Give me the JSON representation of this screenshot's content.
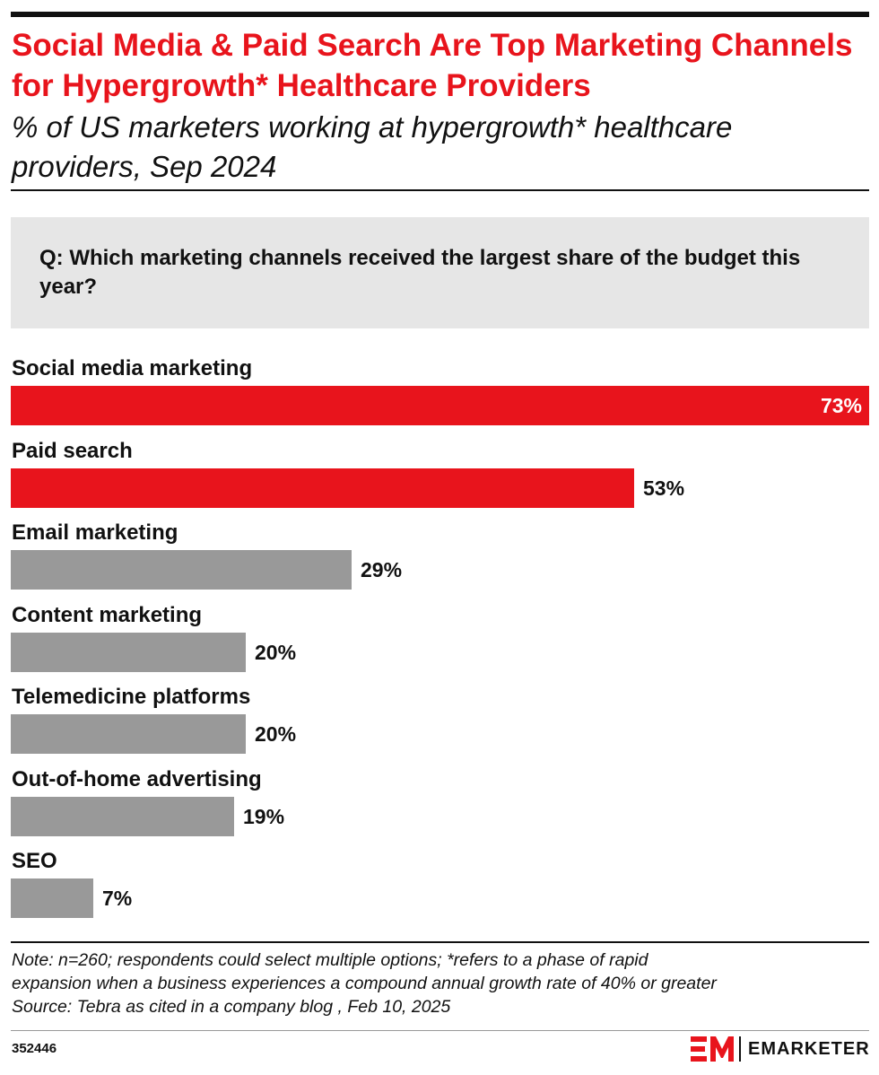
{
  "header": {
    "title": "Social Media & Paid Search Are Top Marketing Channels for Hypergrowth* Healthcare Providers",
    "subtitle": "% of US marketers working at hypergrowth* healthcare providers, Sep 2024"
  },
  "question": "Q: Which marketing channels received the largest share of the budget this year?",
  "colors": {
    "highlight": "#e8141c",
    "default": "#999999",
    "title": "#e8141c"
  },
  "chart_data": {
    "type": "bar",
    "orientation": "horizontal",
    "categories": [
      "Social media marketing",
      "Paid search",
      "Email marketing",
      "Content marketing",
      "Telemedicine platforms",
      "Out-of-home advertising",
      "SEO"
    ],
    "values": [
      73,
      53,
      29,
      20,
      20,
      19,
      7
    ],
    "value_labels": [
      "73%",
      "53%",
      "29%",
      "20%",
      "20%",
      "19%",
      "7%"
    ],
    "highlighted": [
      true,
      true,
      false,
      false,
      false,
      false,
      false
    ],
    "xlim": [
      0,
      73
    ],
    "grid": false,
    "legend": "none"
  },
  "footer": {
    "note_lines": [
      "Note: n=260; respondents could select multiple options; *refers to a phase of rapid",
      "expansion when a business experiences a compound annual growth rate of 40% or greater",
      "Source: Tebra as cited in a company blog , Feb 10, 2025"
    ],
    "chart_id": "352446",
    "brand": "EMARKETER",
    "logo_icon": "em-logo-icon"
  }
}
